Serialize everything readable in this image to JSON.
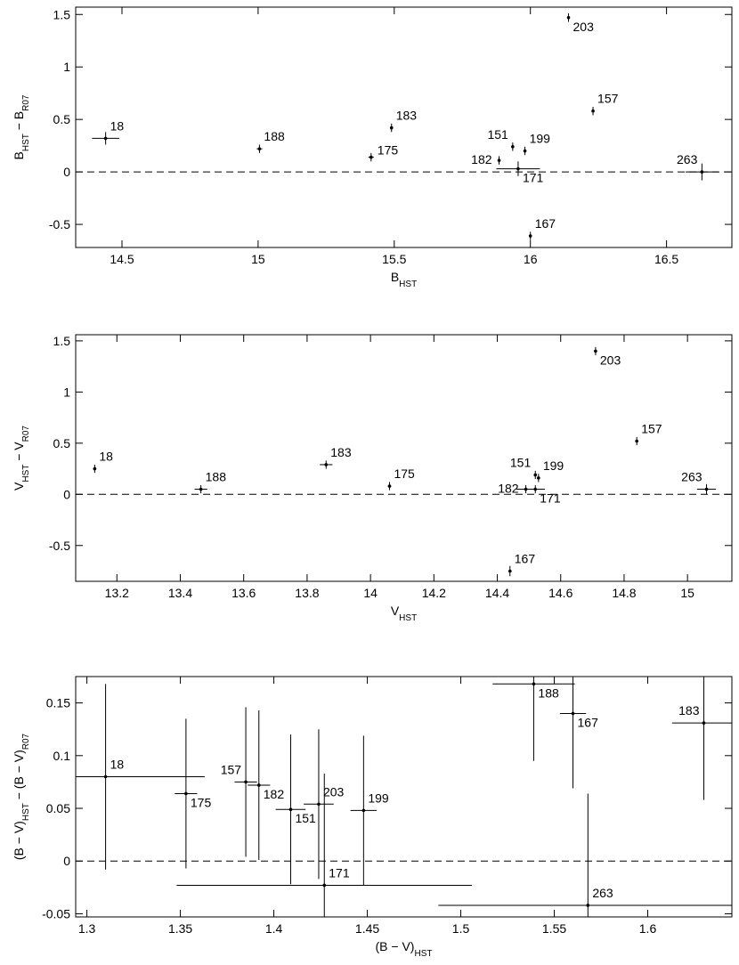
{
  "chart_data": [
    {
      "type": "scatter",
      "xlabel": [
        {
          "text": "B",
          "sub": false
        },
        {
          "text": "HST",
          "sub": true
        }
      ],
      "ylabel": [
        {
          "text": "B",
          "sub": false
        },
        {
          "text": "HST",
          "sub": true
        },
        {
          "text": " − B",
          "sub": false
        },
        {
          "text": "R07",
          "sub": true
        }
      ],
      "xlim": [
        14.33,
        16.74
      ],
      "ylim": [
        -0.72,
        1.57
      ],
      "xticks": [
        14.5,
        15,
        15.5,
        16,
        16.5
      ],
      "yticks": [
        -0.5,
        0,
        0.5,
        1,
        1.5
      ],
      "hline": 0,
      "color": "#000000",
      "labels": [
        "18",
        "188",
        "175",
        "183",
        "151",
        "199",
        "182",
        "171",
        "203",
        "157",
        "167",
        "263"
      ],
      "label_pos": [
        "ne",
        "ne",
        "e",
        "ne",
        "nw",
        "ne",
        "w",
        "se",
        "se",
        "ne",
        "ne",
        "nw"
      ],
      "x": [
        14.44,
        15.005,
        15.415,
        15.49,
        15.935,
        15.98,
        15.885,
        15.955,
        16.14,
        16.23,
        16.0,
        16.63
      ],
      "y": [
        0.32,
        0.22,
        0.14,
        0.42,
        0.24,
        0.2,
        0.11,
        0.03,
        1.47,
        0.58,
        -0.61,
        0.0
      ],
      "x_err": [
        0.05,
        0.01,
        0.01,
        0.005,
        0.005,
        0.005,
        0.005,
        0.08,
        0.005,
        0.005,
        0.005,
        0.06
      ],
      "y_err": [
        0.06,
        0.04,
        0.04,
        0.04,
        0.04,
        0.04,
        0.04,
        0.07,
        0.04,
        0.04,
        0.04,
        0.08
      ]
    },
    {
      "type": "scatter",
      "xlabel": [
        {
          "text": "V",
          "sub": false
        },
        {
          "text": "HST",
          "sub": true
        }
      ],
      "ylabel": [
        {
          "text": "V",
          "sub": false
        },
        {
          "text": "HST",
          "sub": true
        },
        {
          "text": " − V",
          "sub": false
        },
        {
          "text": "R07",
          "sub": true
        }
      ],
      "xlim": [
        13.07,
        15.14
      ],
      "ylim": [
        -0.85,
        1.56
      ],
      "xticks": [
        13.2,
        13.4,
        13.6,
        13.8,
        14,
        14.2,
        14.4,
        14.6,
        14.8,
        15
      ],
      "yticks": [
        -0.5,
        0,
        0.5,
        1,
        1.5
      ],
      "hline": 0,
      "color": "#000000",
      "labels": [
        "18",
        "188",
        "175",
        "183",
        "151",
        "199",
        "182",
        "171",
        "203",
        "157",
        "167",
        "263"
      ],
      "label_pos": [
        "ne",
        "ne",
        "ne",
        "ne",
        "nw",
        "ne",
        "w",
        "se",
        "se",
        "ne",
        "ne",
        "nw"
      ],
      "x": [
        13.13,
        13.465,
        14.06,
        13.86,
        14.52,
        14.53,
        14.49,
        14.52,
        14.71,
        14.84,
        14.44,
        15.06
      ],
      "y": [
        0.25,
        0.05,
        0.08,
        0.29,
        0.19,
        0.16,
        0.05,
        0.05,
        1.4,
        0.52,
        -0.75,
        0.05
      ],
      "x_err": [
        0.005,
        0.02,
        0.005,
        0.02,
        0.005,
        0.005,
        0.03,
        0.03,
        0.005,
        0.005,
        0.005,
        0.03
      ],
      "y_err": [
        0.04,
        0.04,
        0.04,
        0.04,
        0.04,
        0.04,
        0.04,
        0.04,
        0.04,
        0.04,
        0.05,
        0.05
      ]
    },
    {
      "type": "scatter",
      "xlabel": [
        {
          "text": "(B − V)",
          "sub": false
        },
        {
          "text": "HST",
          "sub": true
        }
      ],
      "ylabel": [
        {
          "text": "(B − V)",
          "sub": false
        },
        {
          "text": "HST",
          "sub": true
        },
        {
          "text": " − (B − V)",
          "sub": false
        },
        {
          "text": "R07",
          "sub": true
        }
      ],
      "xlim": [
        1.294,
        1.645
      ],
      "ylim": [
        -0.053,
        0.175
      ],
      "xticks": [
        1.3,
        1.35,
        1.4,
        1.45,
        1.5,
        1.55,
        1.6
      ],
      "yticks": [
        -0.05,
        0,
        0.05,
        0.1,
        0.15
      ],
      "hline": 0,
      "color": "#000000",
      "labels": [
        "18",
        "188",
        "175",
        "183",
        "151",
        "199",
        "182",
        "171",
        "203",
        "157",
        "167",
        "263"
      ],
      "label_pos": [
        "ne",
        "se",
        "se",
        "nw",
        "se",
        "ne",
        "se",
        "ne",
        "ne",
        "nw",
        "se",
        "ne"
      ],
      "x": [
        1.31,
        1.539,
        1.353,
        1.63,
        1.409,
        1.448,
        1.392,
        1.427,
        1.424,
        1.385,
        1.56,
        1.568
      ],
      "y": [
        0.08,
        0.168,
        0.064,
        0.131,
        0.049,
        0.048,
        0.072,
        -0.023,
        0.054,
        0.075,
        0.14,
        -0.042
      ],
      "x_err": [
        0.053,
        0.022,
        0.006,
        0.017,
        0.008,
        0.007,
        0.006,
        0.079,
        0.008,
        0.006,
        0.007,
        0.08
      ],
      "y_err": [
        0.088,
        0.073,
        0.071,
        0.073,
        0.071,
        0.071,
        0.071,
        0.106,
        0.071,
        0.071,
        0.071,
        0.106
      ]
    }
  ]
}
